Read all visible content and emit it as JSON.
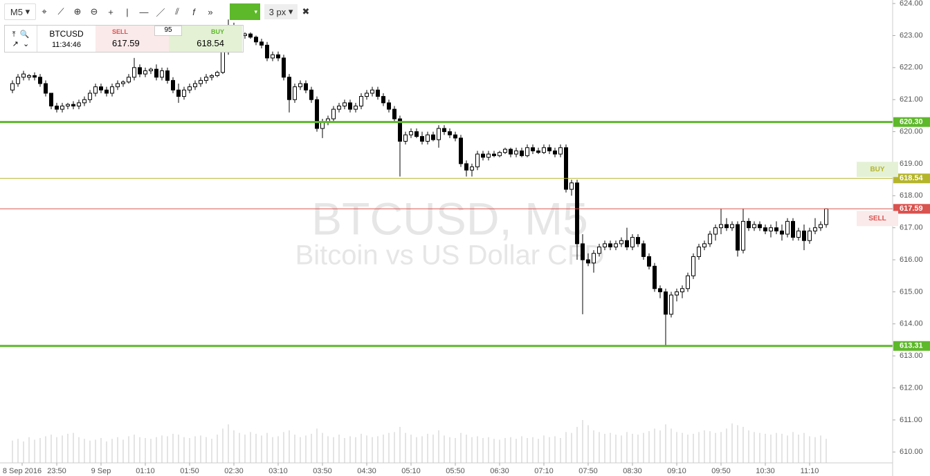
{
  "toolbar": {
    "timeframe": "M5",
    "line_width": "3 px"
  },
  "ticker": {
    "symbol": "BTCUSD",
    "time": "11:34:46",
    "sell_label": "SELL",
    "sell": "617.59",
    "spread": "95",
    "buy_label": "BUY",
    "buy": "618.54"
  },
  "chart_data": {
    "type": "candlestick",
    "title": "BTCUSD, M5",
    "subtitle": "Bitcoin vs US Dollar CFD",
    "ylim": [
      609.66,
      624.11
    ],
    "yticks": [
      {
        "value": 610,
        "label": "610.00"
      },
      {
        "value": 611,
        "label": "611.00"
      },
      {
        "value": 612,
        "label": "612.00"
      },
      {
        "value": 613,
        "label": "613.00"
      },
      {
        "value": 614,
        "label": "614.00"
      },
      {
        "value": 615,
        "label": "615.00"
      },
      {
        "value": 616,
        "label": "616.00"
      },
      {
        "value": 617,
        "label": "617.00"
      },
      {
        "value": 618,
        "label": "618.00"
      },
      {
        "value": 619,
        "label": "619.00"
      },
      {
        "value": 620,
        "label": "620.00"
      },
      {
        "value": 621,
        "label": "621.00"
      },
      {
        "value": 622,
        "label": "622.00"
      },
      {
        "value": 623,
        "label": "623.00"
      },
      {
        "value": 624,
        "label": "624.00"
      }
    ],
    "xlim": [
      -2.25,
      159
    ],
    "xticks": [
      {
        "value": 1.75,
        "label": "8 Sep 2016"
      },
      {
        "value": 8,
        "label": "23:50"
      },
      {
        "value": 16,
        "label": "9 Sep"
      },
      {
        "value": 24,
        "label": "01:10"
      },
      {
        "value": 32,
        "label": "01:50"
      },
      {
        "value": 40,
        "label": "02:30"
      },
      {
        "value": 48,
        "label": "03:10"
      },
      {
        "value": 56,
        "label": "03:50"
      },
      {
        "value": 64,
        "label": "04:30"
      },
      {
        "value": 72,
        "label": "05:10"
      },
      {
        "value": 80,
        "label": "05:50"
      },
      {
        "value": 88,
        "label": "06:30"
      },
      {
        "value": 96,
        "label": "07:10"
      },
      {
        "value": 104,
        "label": "07:50"
      },
      {
        "value": 112,
        "label": "08:30"
      },
      {
        "value": 120,
        "label": "09:10"
      },
      {
        "value": 128,
        "label": "09:50"
      },
      {
        "value": 136,
        "label": "10:30"
      },
      {
        "value": 144,
        "label": "11:10"
      }
    ],
    "levels": [
      {
        "value": 620.3,
        "label": "620.30",
        "color": "#5db82a"
      },
      {
        "value": 613.31,
        "label": "613.31",
        "color": "#5db82a"
      },
      {
        "value": 618.54,
        "label": "618.54",
        "color": "#b5b52c",
        "name": "BUY"
      },
      {
        "value": 617.59,
        "label": "617.59",
        "color": "#d9534f",
        "name": "SELL"
      }
    ],
    "up_color": "#ffffff",
    "down_color": "#000000",
    "candles": [
      [
        621.3,
        621.6,
        621.2,
        621.5
      ],
      [
        621.5,
        621.8,
        621.4,
        621.7
      ],
      [
        621.7,
        621.9,
        621.6,
        621.8
      ],
      [
        621.7,
        621.8,
        621.6,
        621.75
      ],
      [
        621.75,
        621.85,
        621.6,
        621.7
      ],
      [
        621.7,
        621.8,
        621.4,
        621.5
      ],
      [
        621.5,
        621.6,
        621.1,
        621.2
      ],
      [
        621.2,
        621.2,
        620.7,
        620.8
      ],
      [
        620.8,
        620.9,
        620.6,
        620.7
      ],
      [
        620.7,
        620.9,
        620.6,
        620.8
      ],
      [
        620.8,
        620.9,
        620.7,
        620.85
      ],
      [
        620.85,
        620.95,
        620.7,
        620.8
      ],
      [
        620.8,
        621.0,
        620.7,
        620.9
      ],
      [
        620.9,
        621.1,
        620.8,
        621.0
      ],
      [
        621.0,
        621.3,
        620.9,
        621.2
      ],
      [
        621.2,
        621.5,
        621.1,
        621.4
      ],
      [
        621.4,
        621.5,
        621.2,
        621.3
      ],
      [
        621.3,
        621.4,
        621.1,
        621.2
      ],
      [
        621.2,
        621.5,
        621.1,
        621.4
      ],
      [
        621.4,
        621.6,
        621.3,
        621.5
      ],
      [
        621.5,
        621.6,
        621.4,
        621.55
      ],
      [
        621.55,
        621.8,
        621.5,
        621.7
      ],
      [
        621.7,
        622.3,
        621.6,
        622.0
      ],
      [
        622.0,
        622.1,
        621.7,
        621.8
      ],
      [
        621.8,
        622.0,
        621.7,
        621.9
      ],
      [
        621.9,
        622.0,
        621.8,
        621.95
      ],
      [
        621.95,
        622.1,
        621.6,
        621.7
      ],
      [
        621.7,
        622.0,
        621.6,
        621.9
      ],
      [
        621.9,
        622.0,
        621.5,
        621.6
      ],
      [
        621.6,
        621.7,
        621.2,
        621.3
      ],
      [
        621.3,
        621.5,
        620.9,
        621.1
      ],
      [
        621.1,
        621.4,
        621.0,
        621.3
      ],
      [
        621.3,
        621.5,
        621.2,
        621.4
      ],
      [
        621.4,
        621.6,
        621.3,
        621.5
      ],
      [
        621.5,
        621.7,
        621.4,
        621.6
      ],
      [
        621.6,
        621.8,
        621.5,
        621.7
      ],
      [
        621.7,
        621.8,
        621.6,
        621.75
      ],
      [
        621.75,
        621.9,
        621.7,
        621.85
      ],
      [
        621.85,
        622.6,
        621.8,
        622.5
      ],
      [
        622.5,
        623.5,
        622.4,
        623.3
      ],
      [
        623.3,
        623.4,
        622.8,
        622.9
      ],
      [
        622.9,
        623.1,
        622.8,
        623.0
      ],
      [
        623.0,
        623.1,
        622.9,
        623.05
      ],
      [
        623.05,
        623.1,
        622.9,
        622.95
      ],
      [
        622.95,
        623.0,
        622.7,
        622.8
      ],
      [
        622.8,
        622.9,
        622.6,
        622.7
      ],
      [
        622.7,
        622.8,
        622.2,
        622.3
      ],
      [
        622.3,
        622.5,
        622.2,
        622.4
      ],
      [
        622.4,
        622.5,
        622.2,
        622.3
      ],
      [
        622.3,
        622.4,
        621.6,
        621.7
      ],
      [
        621.7,
        621.8,
        620.6,
        621.0
      ],
      [
        621.0,
        621.5,
        620.9,
        621.4
      ],
      [
        621.4,
        621.6,
        621.3,
        621.5
      ],
      [
        621.5,
        621.6,
        621.2,
        621.3
      ],
      [
        621.3,
        621.4,
        620.9,
        621.0
      ],
      [
        621.0,
        621.1,
        620.0,
        620.1
      ],
      [
        620.1,
        620.4,
        619.8,
        620.3
      ],
      [
        620.3,
        620.5,
        620.2,
        620.4
      ],
      [
        620.4,
        620.8,
        620.3,
        620.7
      ],
      [
        620.7,
        620.9,
        620.6,
        620.8
      ],
      [
        620.8,
        621.0,
        620.7,
        620.9
      ],
      [
        620.9,
        621.0,
        620.6,
        620.7
      ],
      [
        620.7,
        620.9,
        620.6,
        620.8
      ],
      [
        620.8,
        621.2,
        620.7,
        621.1
      ],
      [
        621.1,
        621.3,
        621.0,
        621.2
      ],
      [
        621.2,
        621.4,
        621.1,
        621.3
      ],
      [
        621.3,
        621.4,
        621.0,
        621.1
      ],
      [
        621.1,
        621.2,
        620.8,
        620.9
      ],
      [
        620.9,
        621.0,
        620.6,
        620.7
      ],
      [
        620.7,
        620.8,
        620.3,
        620.4
      ],
      [
        620.4,
        620.5,
        618.6,
        619.7
      ],
      [
        619.7,
        620.0,
        619.6,
        619.9
      ],
      [
        619.9,
        620.1,
        619.8,
        620.0
      ],
      [
        620.0,
        620.1,
        619.8,
        619.85
      ],
      [
        619.85,
        620.0,
        619.6,
        619.7
      ],
      [
        619.7,
        620.0,
        619.6,
        619.9
      ],
      [
        619.9,
        620.0,
        619.7,
        619.75
      ],
      [
        619.75,
        620.2,
        619.5,
        620.1
      ],
      [
        620.1,
        620.2,
        619.9,
        620.0
      ],
      [
        620.0,
        620.1,
        619.8,
        619.9
      ],
      [
        619.9,
        620.0,
        619.7,
        619.8
      ],
      [
        619.8,
        619.9,
        618.9,
        619.0
      ],
      [
        619.0,
        619.1,
        618.6,
        618.8
      ],
      [
        618.8,
        619.0,
        618.6,
        618.9
      ],
      [
        618.9,
        619.4,
        618.8,
        619.3
      ],
      [
        619.3,
        619.4,
        619.1,
        619.2
      ],
      [
        619.2,
        619.4,
        619.1,
        619.3
      ],
      [
        619.3,
        619.4,
        619.2,
        619.25
      ],
      [
        619.25,
        619.4,
        619.2,
        619.35
      ],
      [
        619.35,
        619.5,
        619.3,
        619.45
      ],
      [
        619.45,
        619.5,
        619.2,
        619.3
      ],
      [
        619.3,
        619.5,
        619.2,
        619.4
      ],
      [
        619.4,
        619.5,
        619.2,
        619.25
      ],
      [
        619.25,
        619.6,
        619.2,
        619.5
      ],
      [
        619.5,
        619.6,
        619.3,
        619.4
      ],
      [
        619.4,
        619.5,
        619.3,
        619.35
      ],
      [
        619.35,
        619.6,
        619.3,
        619.5
      ],
      [
        619.5,
        619.6,
        619.3,
        619.4
      ],
      [
        619.4,
        619.5,
        619.2,
        619.3
      ],
      [
        619.3,
        619.6,
        619.2,
        619.5
      ],
      [
        619.5,
        619.6,
        618.1,
        618.2
      ],
      [
        618.2,
        618.5,
        618.0,
        618.4
      ],
      [
        618.4,
        618.5,
        616.0,
        616.5
      ],
      [
        616.5,
        616.8,
        614.3,
        616.0
      ],
      [
        616.0,
        616.2,
        615.8,
        615.9
      ],
      [
        615.9,
        616.3,
        615.6,
        616.2
      ],
      [
        616.2,
        616.5,
        616.1,
        616.4
      ],
      [
        616.4,
        616.6,
        616.3,
        616.5
      ],
      [
        616.5,
        616.6,
        616.3,
        616.4
      ],
      [
        616.4,
        616.6,
        616.3,
        616.5
      ],
      [
        616.5,
        616.7,
        616.4,
        616.6
      ],
      [
        616.6,
        617.0,
        616.3,
        616.4
      ],
      [
        616.4,
        616.8,
        616.3,
        616.7
      ],
      [
        616.7,
        616.8,
        616.4,
        616.5
      ],
      [
        616.5,
        616.6,
        616.0,
        616.1
      ],
      [
        616.1,
        616.2,
        615.7,
        615.8
      ],
      [
        615.8,
        615.9,
        615.0,
        615.1
      ],
      [
        615.1,
        615.2,
        614.8,
        615.0
      ],
      [
        615.0,
        615.1,
        613.31,
        614.3
      ],
      [
        614.3,
        615.0,
        614.2,
        614.9
      ],
      [
        614.9,
        615.1,
        614.7,
        615.0
      ],
      [
        615.0,
        615.2,
        614.8,
        615.1
      ],
      [
        615.1,
        615.6,
        615.0,
        615.5
      ],
      [
        615.5,
        616.2,
        615.4,
        616.1
      ],
      [
        616.1,
        616.5,
        616.0,
        616.4
      ],
      [
        616.4,
        616.6,
        616.3,
        616.5
      ],
      [
        616.5,
        616.9,
        616.4,
        616.8
      ],
      [
        616.8,
        617.1,
        616.6,
        617.0
      ],
      [
        617.0,
        617.6,
        616.8,
        617.1
      ],
      [
        617.1,
        617.3,
        616.9,
        617.0
      ],
      [
        617.0,
        617.2,
        616.9,
        617.1
      ],
      [
        617.1,
        617.2,
        616.1,
        616.3
      ],
      [
        616.3,
        617.6,
        616.2,
        617.2
      ],
      [
        617.2,
        617.3,
        616.9,
        617.0
      ],
      [
        617.0,
        617.2,
        616.9,
        617.1
      ],
      [
        617.1,
        617.2,
        616.9,
        617.0
      ],
      [
        617.0,
        617.1,
        616.8,
        616.9
      ],
      [
        616.9,
        617.1,
        616.7,
        617.0
      ],
      [
        617.0,
        617.2,
        616.8,
        616.9
      ],
      [
        616.9,
        617.1,
        616.6,
        616.8
      ],
      [
        616.8,
        617.3,
        616.7,
        617.2
      ],
      [
        617.2,
        617.3,
        616.6,
        616.7
      ],
      [
        616.7,
        617.0,
        616.6,
        616.9
      ],
      [
        616.9,
        617.1,
        616.3,
        616.6
      ],
      [
        616.6,
        617.0,
        616.5,
        616.9
      ],
      [
        616.9,
        617.3,
        616.8,
        617.0
      ],
      [
        617.0,
        617.2,
        616.9,
        617.1
      ],
      [
        617.1,
        617.6,
        617.0,
        617.59
      ]
    ],
    "volume": [
      26,
      28,
      25,
      30,
      27,
      29,
      31,
      33,
      30,
      32,
      34,
      35,
      30,
      28,
      26,
      27,
      29,
      25,
      28,
      30,
      27,
      31,
      33,
      30,
      29,
      28,
      30,
      32,
      31,
      34,
      33,
      30,
      29,
      31,
      32,
      30,
      28,
      33,
      40,
      45,
      38,
      35,
      33,
      36,
      34,
      32,
      35,
      30,
      31,
      36,
      38,
      33,
      30,
      32,
      34,
      40,
      35,
      31,
      30,
      33,
      29,
      31,
      30,
      34,
      32,
      30,
      31,
      33,
      35,
      36,
      42,
      35,
      33,
      30,
      31,
      34,
      33,
      38,
      32,
      30,
      29,
      35,
      33,
      30,
      31,
      29,
      30,
      28,
      27,
      29,
      30,
      28,
      31,
      29,
      30,
      28,
      32,
      30,
      31,
      29,
      36,
      35,
      42,
      50,
      44,
      38,
      36,
      34,
      35,
      33,
      32,
      36,
      34,
      33,
      35,
      37,
      40,
      38,
      45,
      40,
      36,
      35,
      33,
      34,
      36,
      38,
      37,
      35,
      36,
      40,
      46,
      44,
      42,
      38,
      36,
      35,
      34,
      33,
      35,
      34,
      32,
      36,
      33,
      35,
      31,
      30,
      32,
      28
    ]
  }
}
